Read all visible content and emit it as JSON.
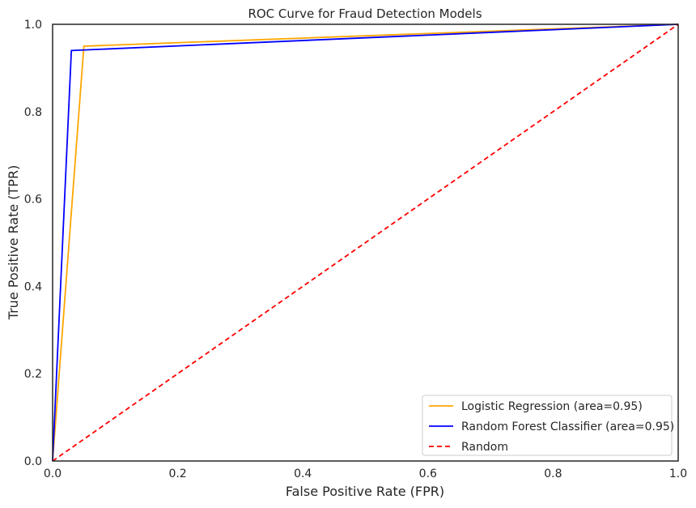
{
  "chart_data": {
    "type": "line",
    "title": "ROC Curve for Fraud Detection Models",
    "xlabel": "False Positive Rate (FPR)",
    "ylabel": "True Positive Rate (TPR)",
    "xlim": [
      0.0,
      1.0
    ],
    "ylim": [
      0.0,
      1.0
    ],
    "x_ticks": [
      "0.0",
      "0.2",
      "0.4",
      "0.6",
      "0.8",
      "1.0"
    ],
    "y_ticks": [
      "0.0",
      "0.2",
      "0.4",
      "0.6",
      "0.8",
      "1.0"
    ],
    "grid": false,
    "legend_position": "lower-right",
    "series": [
      {
        "name": "Logistic Regression (area=0.95)",
        "color": "#ffa500",
        "style": "solid",
        "x": [
          0.0,
          0.05,
          1.0
        ],
        "y": [
          0.0,
          0.95,
          1.0
        ]
      },
      {
        "name": "Random Forest Classifier (area=0.95)",
        "color": "#0000ff",
        "style": "solid",
        "x": [
          0.0,
          0.03,
          1.0
        ],
        "y": [
          0.0,
          0.94,
          1.0
        ]
      },
      {
        "name": "Random",
        "color": "#ff0000",
        "style": "dashed",
        "x": [
          0.0,
          1.0
        ],
        "y": [
          0.0,
          1.0
        ]
      }
    ]
  }
}
